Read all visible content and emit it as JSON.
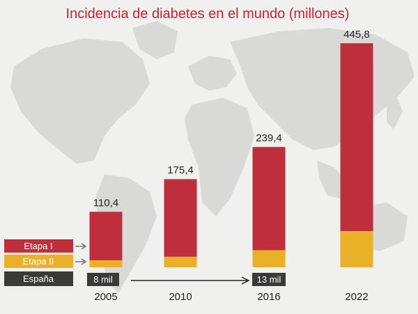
{
  "chart_data": {
    "type": "bar",
    "title": "Incidencia de diabetes en el mundo (millones)",
    "categories": [
      "2005",
      "2010",
      "2016",
      "2022"
    ],
    "total_labels": [
      "110,4",
      "175,4",
      "239,4",
      "445,8"
    ],
    "series": [
      {
        "name": "Etapa I",
        "values": [
          96.4,
          154.4,
          205.4,
          373.8
        ]
      },
      {
        "name": "Etapa II",
        "values": [
          14.0,
          21.0,
          34.0,
          72.0
        ]
      }
    ],
    "totals": [
      110.4,
      175.4,
      239.4,
      445.8
    ],
    "ylim": [
      0,
      480
    ],
    "legend_placement": "bottom-left",
    "espana": {
      "label": "España",
      "values": [
        {
          "category": "2005",
          "text": "8 mil"
        },
        {
          "category": "2016",
          "text": "13 mil"
        }
      ]
    }
  },
  "colors": {
    "etapa_1": "#be2e3c",
    "etapa_2": "#e8b127",
    "espana_box": "#3a3a3a",
    "title": "#c42230",
    "map_land": "#d7d7d5",
    "background": "#f0f0ef"
  }
}
